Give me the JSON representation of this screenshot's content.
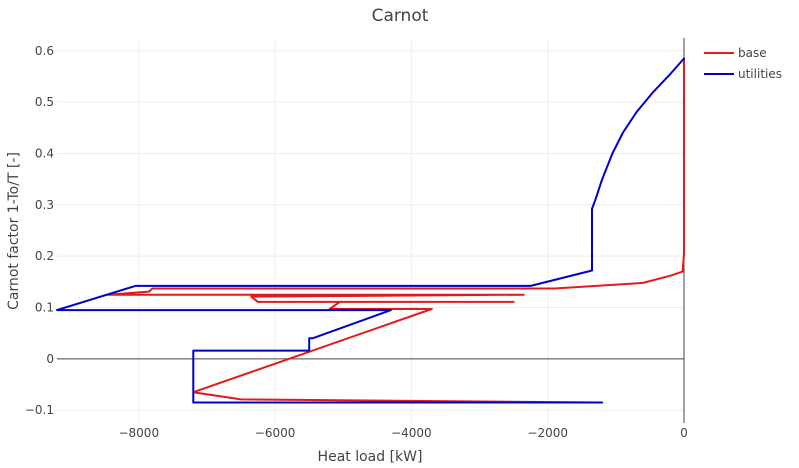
{
  "chart_data": {
    "type": "line",
    "title": "Carnot",
    "xlabel": "Heat load [kW]",
    "ylabel": "Carnot factor 1-To/T [-]",
    "xlim": [
      -9200,
      0
    ],
    "ylim": [
      -0.125,
      0.625
    ],
    "x_ticks": [
      -8000,
      -6000,
      -4000,
      -2000,
      0
    ],
    "x_tick_labels": [
      "−8000",
      "−6000",
      "−4000",
      "−2000",
      "0"
    ],
    "y_ticks": [
      -0.1,
      0,
      0.1,
      0.2,
      0.3,
      0.4,
      0.5,
      0.6
    ],
    "y_tick_labels": [
      "−0.1",
      "0",
      "0.1",
      "0.2",
      "0.3",
      "0.4",
      "0.5",
      "0.6"
    ],
    "grid": true,
    "zero_lines": true,
    "legend_position": "top-right",
    "series": [
      {
        "name": "base",
        "color": "#e31a1c",
        "x": [
          0,
          0,
          -20,
          -200,
          -600,
          -1900,
          -7800,
          -7850,
          -8450,
          -2350,
          -6350,
          -6250,
          -2500,
          -5050,
          -5200,
          -3700,
          -7200,
          -6500,
          -1250,
          -7200
        ],
        "y": [
          0.585,
          0.205,
          0.17,
          0.162,
          0.148,
          0.137,
          0.137,
          0.131,
          0.125,
          0.125,
          0.121,
          0.111,
          0.111,
          0.111,
          0.097,
          0.097,
          -0.065,
          -0.079,
          -0.085,
          -0.085
        ]
      },
      {
        "name": "utilities",
        "color": "#0000cc",
        "x": [
          -1200,
          -7200,
          -7200,
          -7200,
          -5500,
          -5500,
          -5450,
          -4300,
          -9200,
          -8050,
          -8050,
          -2250,
          -1350,
          -1350,
          -1300,
          -1200,
          -1050,
          -900,
          -700,
          -450,
          -200,
          0
        ],
        "y": [
          -0.085,
          -0.085,
          -0.065,
          0.016,
          0.016,
          0.04,
          0.04,
          0.095,
          0.095,
          0.142,
          0.142,
          0.142,
          0.172,
          0.292,
          0.31,
          0.35,
          0.4,
          0.44,
          0.48,
          0.52,
          0.555,
          0.585
        ]
      }
    ]
  }
}
